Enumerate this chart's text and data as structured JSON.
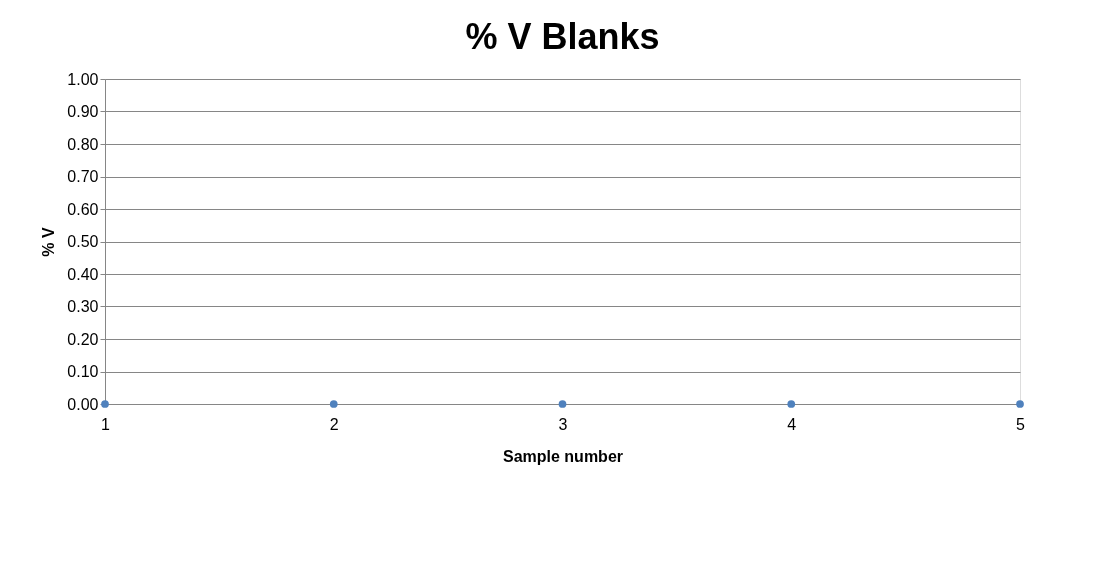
{
  "chart_data": {
    "type": "scatter",
    "title": "% V Blanks",
    "xlabel": "Sample number",
    "ylabel": "% V",
    "x": [
      1,
      2,
      3,
      4,
      5
    ],
    "series": [
      {
        "color": "#4f81bd",
        "values": [
          0,
          0,
          0,
          0,
          0
        ]
      }
    ],
    "xlim": [
      1,
      5
    ],
    "xticks": [
      1,
      2,
      3,
      4,
      5
    ],
    "ylim": [
      0,
      1
    ],
    "yticks": [
      {
        "value": 0,
        "label": "0.00"
      },
      {
        "value": 0.1,
        "label": "0.10"
      },
      {
        "value": 0.2,
        "label": "0.20"
      },
      {
        "value": 0.3,
        "label": "0.30"
      },
      {
        "value": 0.4,
        "label": "0.40"
      },
      {
        "value": 0.5,
        "label": "0.50"
      },
      {
        "value": 0.6,
        "label": "0.60"
      },
      {
        "value": 0.7,
        "label": "0.70"
      },
      {
        "value": 0.8,
        "label": "0.80"
      },
      {
        "value": 0.9,
        "label": "0.90"
      },
      {
        "value": 1,
        "label": "1.00"
      }
    ],
    "grid": "y",
    "marker": "circle",
    "legend": false
  }
}
